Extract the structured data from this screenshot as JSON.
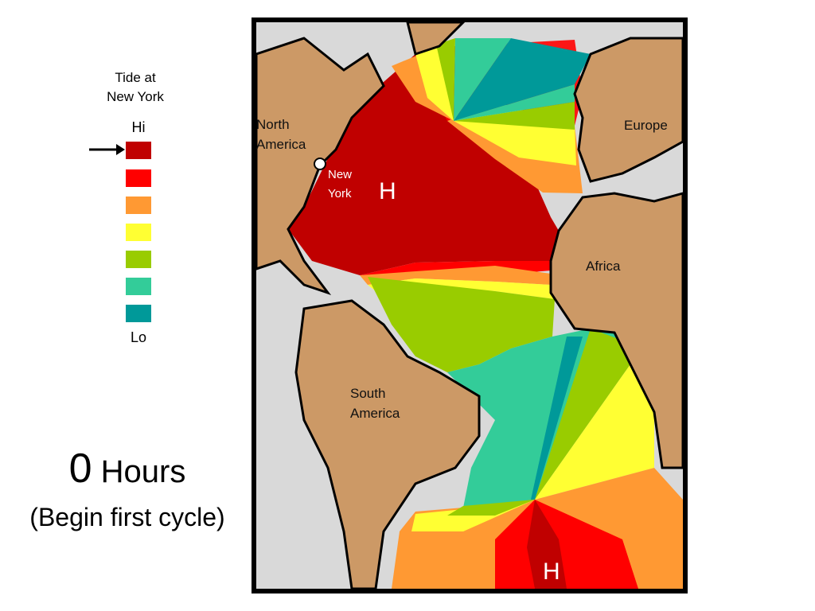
{
  "legend": {
    "title_line1": "Tide at",
    "title_line2": "New York",
    "hi_label": "Hi",
    "lo_label": "Lo",
    "levels": [
      "#c00000",
      "#ff0000",
      "#ff9933",
      "#ffff33",
      "#99cc00",
      "#33cc99",
      "#009999"
    ],
    "indicated_level": "Hi"
  },
  "time_label": {
    "number": "0",
    "unit": "Hours",
    "subtitle": "(Begin first cycle)"
  },
  "map": {
    "regions": {
      "north_america": [
        "North",
        "America"
      ],
      "europe": "Europe",
      "africa": "Africa",
      "south_america": [
        "South",
        "America"
      ]
    },
    "city": [
      "New",
      "York"
    ],
    "high_tide_markers": [
      "H",
      "H"
    ],
    "colors": {
      "land": "#cc9966",
      "unmapped": "#d9d9d9",
      "coast": "#000000"
    }
  }
}
